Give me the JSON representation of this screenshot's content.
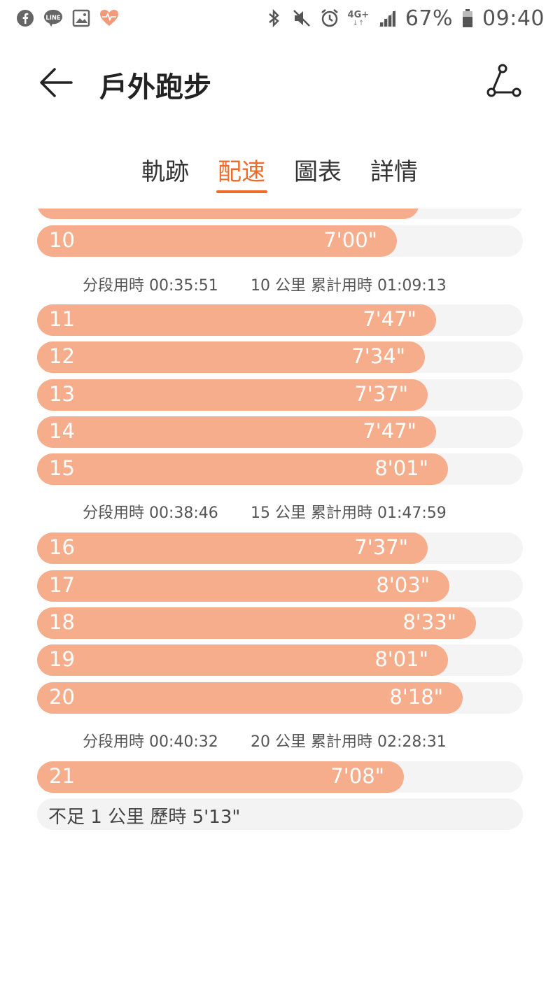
{
  "status_bar": {
    "battery": "67%",
    "time": "09:40",
    "network": "4G+",
    "left_icons": [
      "facebook-icon",
      "line-icon",
      "gallery-icon",
      "health-icon"
    ],
    "right_icons": [
      "bluetooth-icon",
      "mute-icon",
      "alarm-icon",
      "signal-icon",
      "battery-icon"
    ]
  },
  "header": {
    "title": "戶外跑步"
  },
  "tabs": [
    {
      "label": "軌跡",
      "active": false
    },
    {
      "label": "配速",
      "active": true
    },
    {
      "label": "圖表",
      "active": false
    },
    {
      "label": "詳情",
      "active": false
    }
  ],
  "colors": {
    "accent": "#f06a2c",
    "bar": "#f5ad8c",
    "track": "#f4f4f4"
  },
  "splits": [
    {
      "km": "10",
      "pace": "7'00\"",
      "fill": 0.74
    },
    {
      "km": "11",
      "pace": "7'47\"",
      "fill": 0.822
    },
    {
      "km": "12",
      "pace": "7'34\"",
      "fill": 0.798
    },
    {
      "km": "13",
      "pace": "7'37\"",
      "fill": 0.804
    },
    {
      "km": "14",
      "pace": "7'47\"",
      "fill": 0.822
    },
    {
      "km": "15",
      "pace": "8'01\"",
      "fill": 0.846
    },
    {
      "km": "16",
      "pace": "7'37\"",
      "fill": 0.804
    },
    {
      "km": "17",
      "pace": "8'03\"",
      "fill": 0.849
    },
    {
      "km": "18",
      "pace": "8'33\"",
      "fill": 0.903
    },
    {
      "km": "19",
      "pace": "8'01\"",
      "fill": 0.846
    },
    {
      "km": "20",
      "pace": "8'18\"",
      "fill": 0.876
    },
    {
      "km": "21",
      "pace": "7'08\"",
      "fill": 0.755
    }
  ],
  "summaries": [
    {
      "segment": "分段用時 00:35:51",
      "cumulative": "10 公里 累計用時 01:09:13"
    },
    {
      "segment": "分段用時 00:38:46",
      "cumulative": "15 公里 累計用時 01:47:59"
    },
    {
      "segment": "分段用時 00:40:32",
      "cumulative": "20 公里 累計用時 02:28:31"
    }
  ],
  "remainder": "不足 1 公里 歷時 5'13\""
}
